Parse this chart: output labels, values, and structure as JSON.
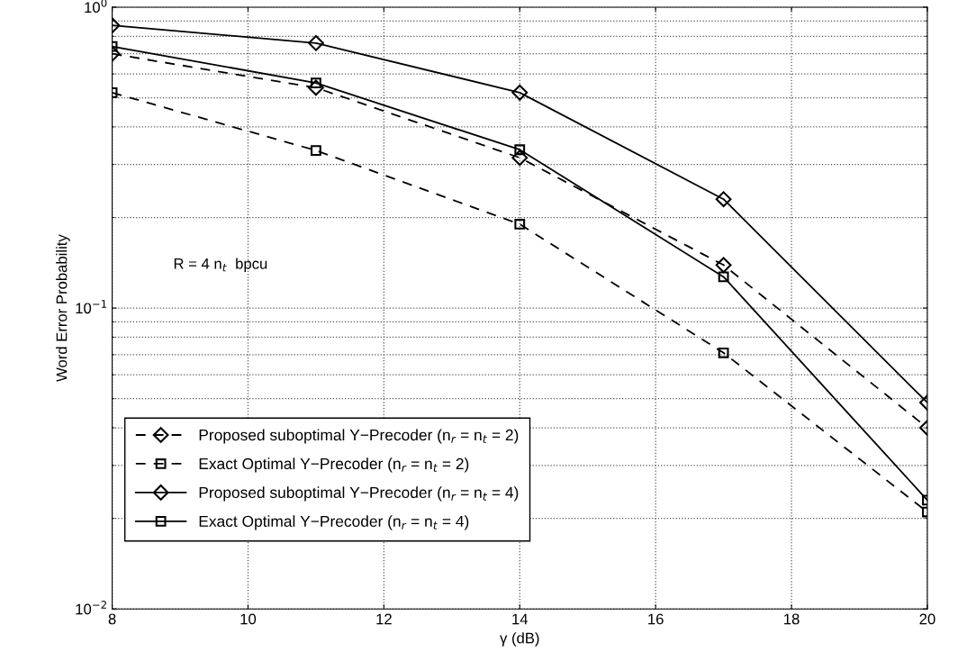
{
  "chart_data": {
    "type": "line",
    "xlabel": "γ (dB)",
    "ylabel": "Word Error Probability",
    "log": "y",
    "grid": true,
    "legend": "bottom left",
    "x": [
      8,
      11,
      14,
      17,
      20
    ],
    "xlim": [
      8,
      20
    ],
    "xticks": [
      8,
      10,
      12,
      14,
      16,
      18,
      20
    ],
    "ylim": [
      0.01,
      1
    ],
    "yticks": [
      {
        "value": 0.01,
        "label": "10$^{−2}$"
      },
      {
        "value": 0.1,
        "label": "10$^{−1}$"
      },
      {
        "value": 1,
        "label": "10$^{0}$"
      }
    ],
    "annotations": [
      "R = 4 n$_{t}$  bpcu"
    ],
    "series": [
      {
        "name": "Proposed suboptimal Y−Precoder (n$_{r}$ = n$_{t}$ = 2)",
        "color": "#000000",
        "marker": "diamond",
        "line_style": "dashed",
        "values": [
          0.7,
          0.54,
          0.316,
          0.139,
          0.04
        ]
      },
      {
        "name": "Exact Optimal Y−Precoder (n$_{r}$ = n$_{t}$ = 2)",
        "color": "#000000",
        "marker": "square",
        "line_style": "dashed",
        "values": [
          0.52,
          0.334,
          0.19,
          0.071,
          0.021
        ]
      },
      {
        "name": "Proposed suboptimal Y−Precoder (n$_{r}$ = n$_{t}$ = 4)",
        "color": "#000000",
        "marker": "diamond",
        "line_style": "solid",
        "values": [
          0.87,
          0.76,
          0.52,
          0.23,
          0.0485
        ]
      },
      {
        "name": "Exact Optimal Y−Precoder (n$_{r}$ = n$_{t}$ = 4)",
        "color": "#000000",
        "marker": "square",
        "line_style": "solid",
        "values": [
          0.74,
          0.56,
          0.336,
          0.127,
          0.023
        ]
      }
    ]
  }
}
